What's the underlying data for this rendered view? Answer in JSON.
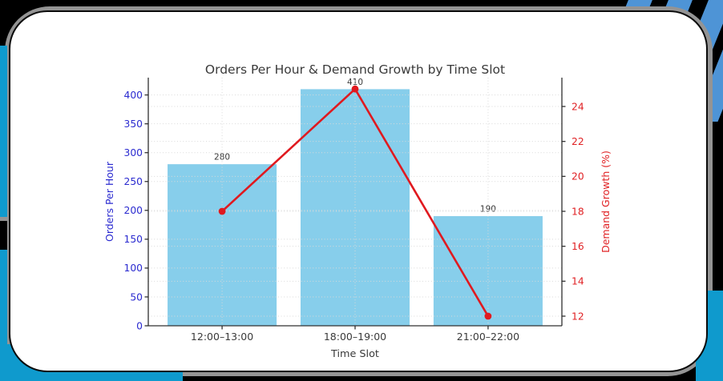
{
  "frame": {
    "outer_bg": "#000000",
    "trim_gray": "#949494",
    "accent_cyan": "#0f9acd",
    "stripe_blue": "#4e94d6",
    "card_bg": "#ffffff",
    "card_border": "#0a0a0a"
  },
  "chart_data": {
    "type": "bar+line dual-axis combo",
    "title": "Orders Per Hour & Demand Growth by Time Slot",
    "title_color": "#3a3a3a",
    "categories": [
      "12:00–13:00",
      "18:00–19:00",
      "21:00–22:00"
    ],
    "xlabel": "Time Slot",
    "grid": {
      "style": "dotted",
      "color": "#d9d9d9",
      "horizontal": "both y-axes majors",
      "vertical": "category centers"
    },
    "spine_color": "#303030",
    "left_axis": {
      "label": "Orders Per Hour",
      "color": "#2b2bd0",
      "min": 0,
      "max": 430,
      "ticks": [
        0,
        50,
        100,
        150,
        200,
        250,
        300,
        350,
        400
      ]
    },
    "right_axis": {
      "label": "Demand Growth (%)",
      "color": "#e02124",
      "min": 11.45,
      "max": 25.65,
      "ticks": [
        12,
        14,
        16,
        18,
        20,
        22,
        24
      ]
    },
    "series": [
      {
        "name": "Orders Per Hour",
        "type": "bar",
        "axis": "left",
        "color": "#87ceeb",
        "values": [
          280,
          410,
          190
        ],
        "value_labels": [
          "280",
          "410",
          "190"
        ]
      },
      {
        "name": "Demand Growth (%)",
        "type": "line",
        "axis": "right",
        "color": "#e0191f",
        "marker": "circle",
        "values": [
          18,
          25,
          12
        ]
      }
    ]
  }
}
